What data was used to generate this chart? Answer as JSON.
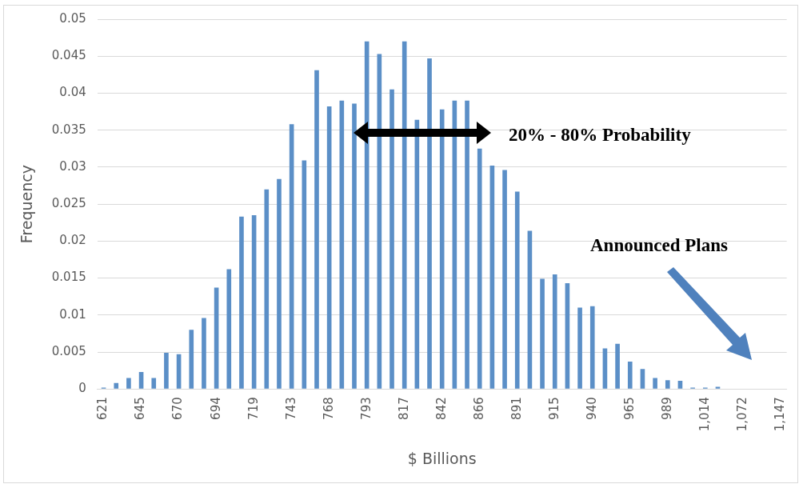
{
  "chart_data": {
    "type": "bar",
    "xlabel": "$ Billions",
    "ylabel": "Frequency",
    "categories": [
      "621",
      null,
      null,
      "645",
      null,
      null,
      "670",
      null,
      null,
      "694",
      null,
      null,
      "719",
      null,
      null,
      "743",
      null,
      null,
      "768",
      null,
      null,
      "793",
      null,
      null,
      "817",
      null,
      null,
      "842",
      null,
      null,
      "866",
      null,
      null,
      "891",
      null,
      null,
      "915",
      null,
      null,
      "940",
      null,
      null,
      "965",
      null,
      null,
      "989",
      null,
      null,
      "1,014",
      null,
      null,
      "1,072",
      null,
      null,
      "1,147"
    ],
    "values": [
      0.0002,
      0.0008,
      0.0015,
      0.0023,
      0.0015,
      0.0049,
      0.0047,
      0.008,
      0.0096,
      0.0137,
      0.0162,
      0.0233,
      0.0235,
      0.027,
      0.0284,
      0.0358,
      0.0309,
      0.0431,
      0.0382,
      0.039,
      0.0386,
      0.047,
      0.0453,
      0.0405,
      0.047,
      0.0364,
      0.0447,
      0.0378,
      0.039,
      0.039,
      0.0325,
      0.0302,
      0.0296,
      0.0267,
      0.0214,
      0.0149,
      0.0155,
      0.0143,
      0.011,
      0.0112,
      0.0055,
      0.0061,
      0.0037,
      0.0027,
      0.0015,
      0.0012,
      0.0011,
      0.0002,
      0.0002,
      0.0003,
      null,
      null,
      null,
      null,
      null
    ],
    "color": "#5b8fc7",
    "ylim": [
      0,
      0.05
    ],
    "yticks": [
      0,
      0.005,
      0.01,
      0.015,
      0.02,
      0.025,
      0.03,
      0.035,
      0.04,
      0.045,
      0.05
    ],
    "grid": "y",
    "legend": false,
    "annotations": [
      "20% - 80% Probability",
      "Announced Plans"
    ]
  }
}
